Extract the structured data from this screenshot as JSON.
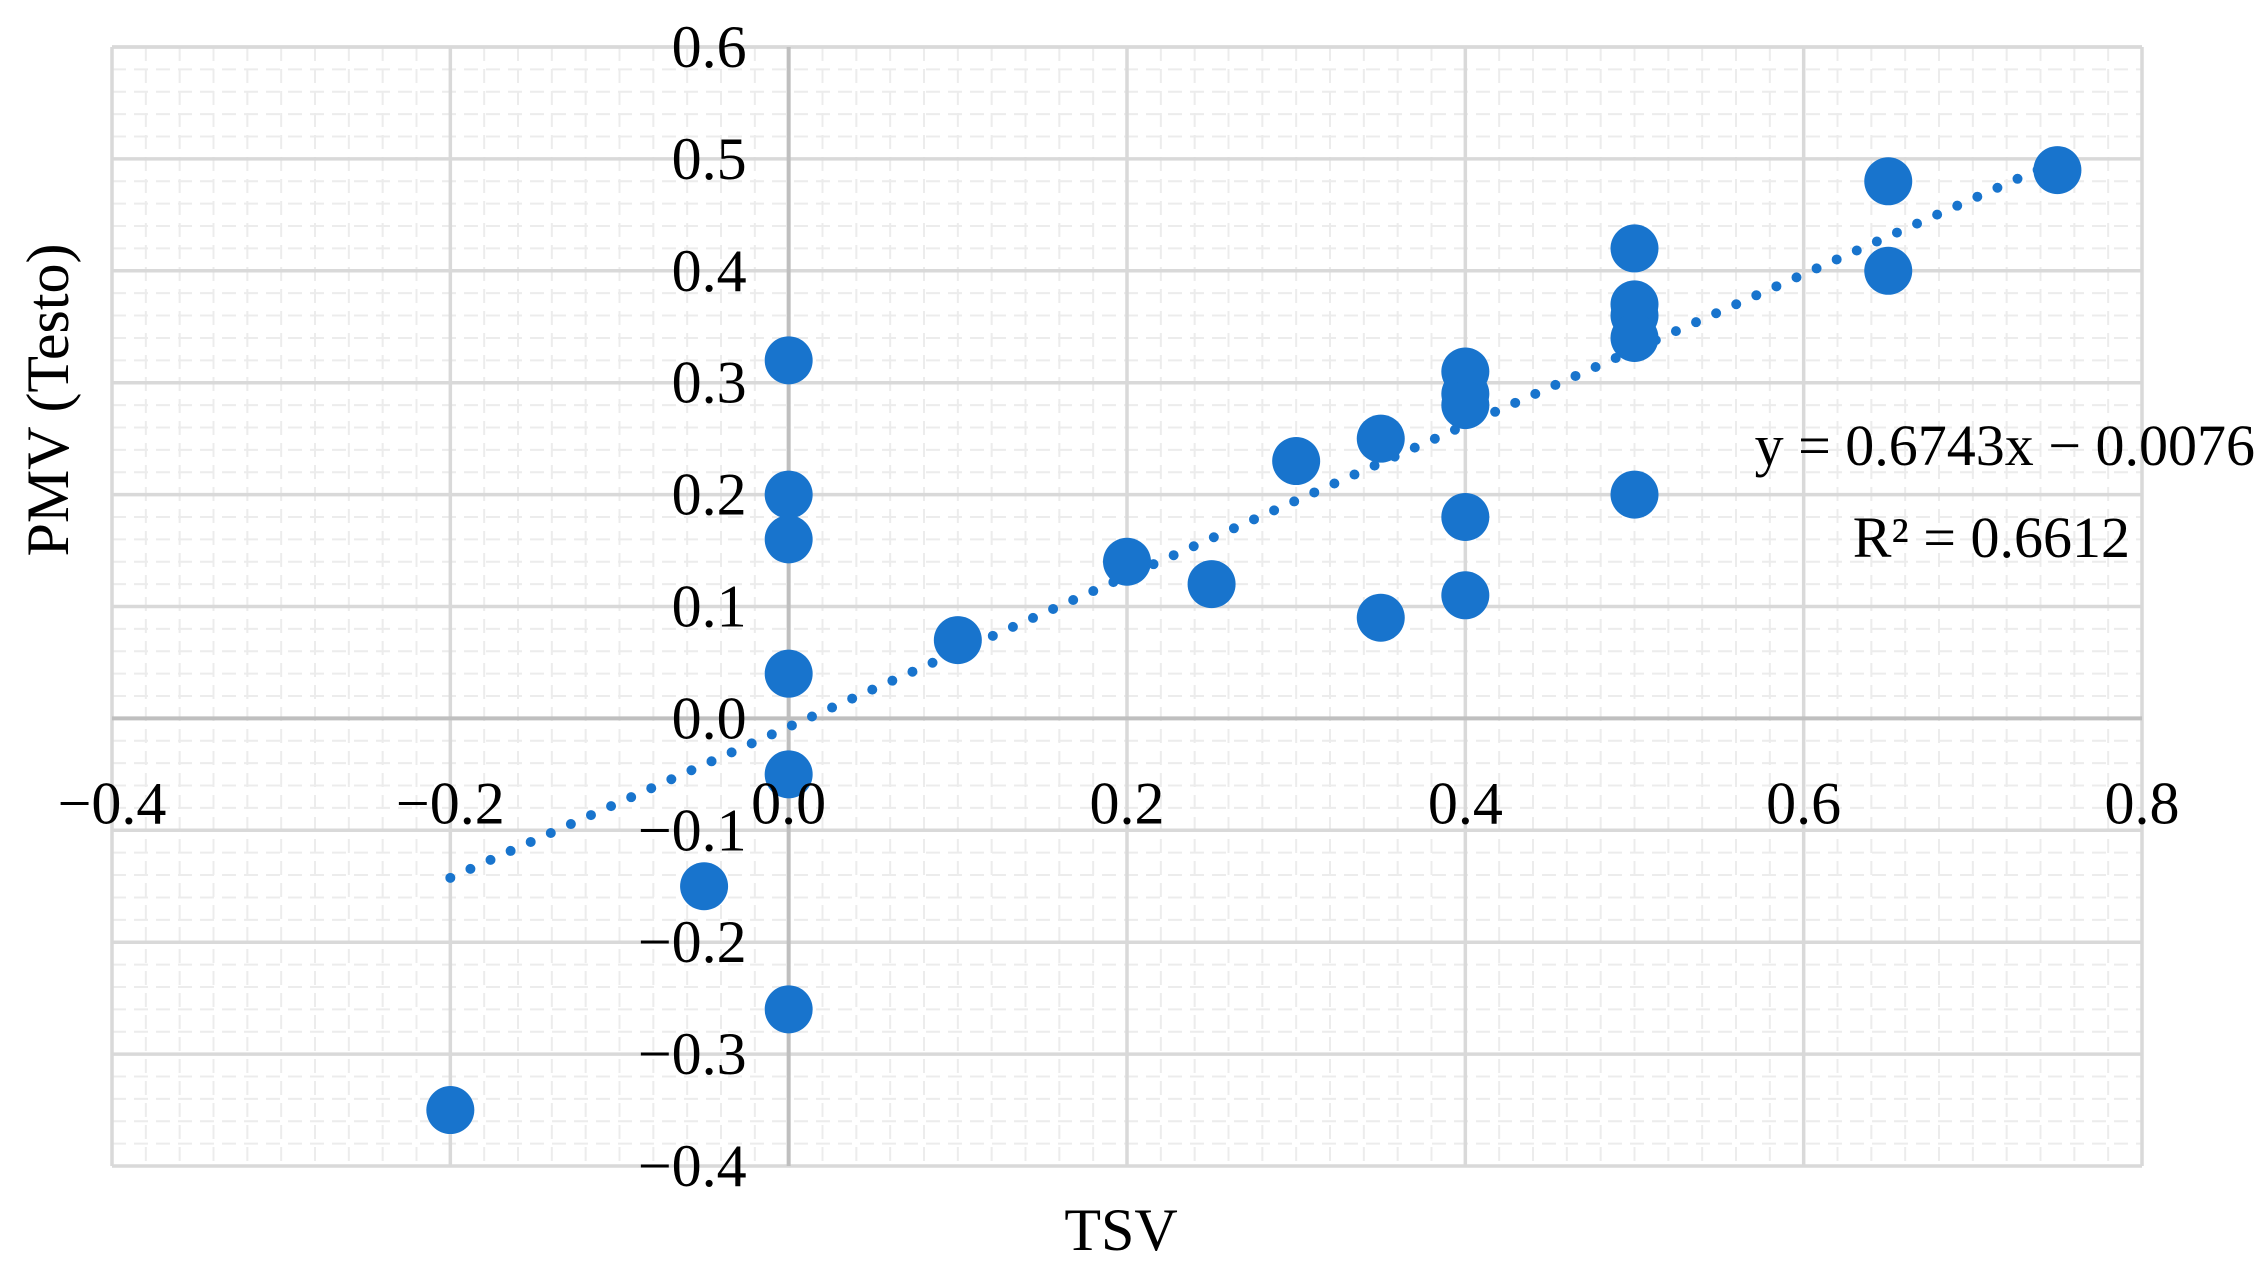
{
  "chart_data": {
    "type": "scatter",
    "title": "",
    "xlabel": "TSV",
    "ylabel": "PMV (Testo)",
    "xlim": [
      -0.4,
      0.8
    ],
    "ylim": [
      -0.4,
      0.6
    ],
    "x_ticks": [
      -0.4,
      -0.2,
      0.0,
      0.2,
      0.4,
      0.6,
      0.8
    ],
    "y_ticks": [
      -0.4,
      -0.3,
      -0.2,
      -0.1,
      0.0,
      0.1,
      0.2,
      0.3,
      0.4,
      0.5,
      0.6
    ],
    "x_tick_labels": [
      "−0.4",
      "−0.2",
      "0.0",
      "0.2",
      "0.4",
      "0.6",
      "0.8"
    ],
    "y_tick_labels": [
      "−0.4",
      "−0.3",
      "−0.2",
      "−0.1",
      "0.0",
      "0.1",
      "0.2",
      "0.3",
      "0.4",
      "0.5",
      "0.6"
    ],
    "grid": true,
    "marker_color": "#1874cd",
    "grid_color": "#d9d9d9",
    "points": [
      {
        "x": -0.2,
        "y": -0.35
      },
      {
        "x": -0.05,
        "y": -0.15
      },
      {
        "x": 0.0,
        "y": -0.26
      },
      {
        "x": 0.0,
        "y": -0.05
      },
      {
        "x": 0.0,
        "y": 0.04
      },
      {
        "x": 0.0,
        "y": 0.16
      },
      {
        "x": 0.0,
        "y": 0.2
      },
      {
        "x": 0.0,
        "y": 0.32
      },
      {
        "x": 0.1,
        "y": 0.07
      },
      {
        "x": 0.2,
        "y": 0.14
      },
      {
        "x": 0.25,
        "y": 0.12
      },
      {
        "x": 0.3,
        "y": 0.23
      },
      {
        "x": 0.35,
        "y": 0.25
      },
      {
        "x": 0.35,
        "y": 0.09
      },
      {
        "x": 0.4,
        "y": 0.31
      },
      {
        "x": 0.4,
        "y": 0.29
      },
      {
        "x": 0.4,
        "y": 0.28
      },
      {
        "x": 0.4,
        "y": 0.18
      },
      {
        "x": 0.4,
        "y": 0.11
      },
      {
        "x": 0.5,
        "y": 0.42
      },
      {
        "x": 0.5,
        "y": 0.37
      },
      {
        "x": 0.5,
        "y": 0.36
      },
      {
        "x": 0.5,
        "y": 0.34
      },
      {
        "x": 0.5,
        "y": 0.2
      },
      {
        "x": 0.65,
        "y": 0.48
      },
      {
        "x": 0.65,
        "y": 0.4
      },
      {
        "x": 0.75,
        "y": 0.49
      }
    ],
    "trendline": {
      "type": "linear",
      "slope": 0.6743,
      "intercept": -0.0076,
      "x_range": [
        -0.2,
        0.75
      ],
      "style": "dotted",
      "equation_label": "y = 0.6743x − 0.0076",
      "r2_label": "R² = 0.6612"
    }
  }
}
